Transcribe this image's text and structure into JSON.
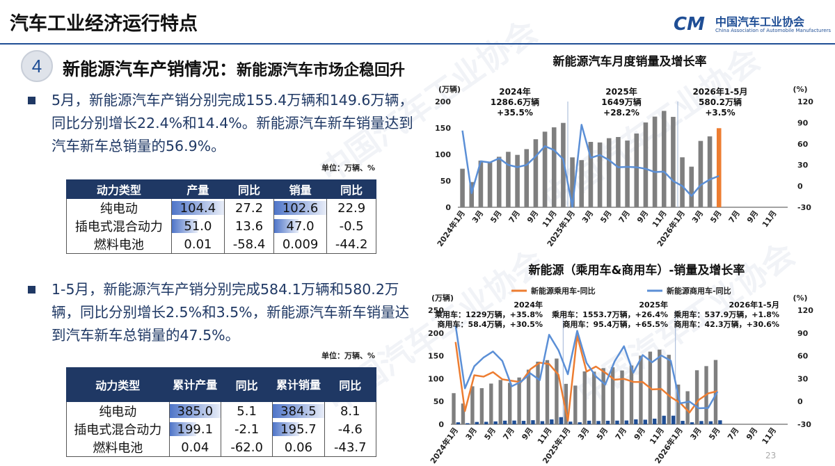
{
  "header": {
    "title": "汽车工业经济运行特点",
    "logo_mark": "CM",
    "logo_cn": "中国汽车工业协会",
    "logo_en": "China Association of Automobile Manufacturers"
  },
  "section": {
    "number": "4",
    "title": "新能源汽车产销情况：",
    "subtitle": "新能源汽车市场企稳回升"
  },
  "bullet1": "5月，新能源汽车产销分别完成155.4万辆和149.6万辆，同比分别增长22.4%和14.4%。新能源汽车新车销量达到汽车新车总销量的56.9%。",
  "bullet2": "1-5月，新能源汽车产销分别完成584.1万辆和580.2万辆，同比分别增长2.5%和3.5%，新能源汽车新车销量达到汽车新车总销量的47.5%。",
  "table1": {
    "unit": "单位：万辆、%",
    "headers": [
      "动力类型",
      "产量",
      "同比",
      "销量",
      "同比"
    ],
    "rows": [
      {
        "type": "纯电动",
        "prod": "104.4",
        "prod_yoy": "27.2",
        "sales": "102.6",
        "sales_yoy": "22.9",
        "prod_fill": 1.0,
        "sales_fill": 1.0
      },
      {
        "type": "插电式混合动力",
        "prod": "51.0",
        "prod_yoy": "13.6",
        "sales": "47.0",
        "sales_yoy": "-0.5",
        "prod_fill": 0.49,
        "sales_fill": 0.46
      },
      {
        "type": "燃料电池",
        "prod": "0.01",
        "prod_yoy": "-58.4",
        "sales": "0.009",
        "sales_yoy": "-44.2",
        "prod_fill": 0,
        "sales_fill": 0
      }
    ]
  },
  "table2": {
    "unit": "单位：万辆、%",
    "headers": [
      "动力类型",
      "累计产量",
      "同比",
      "累计销量",
      "同比"
    ],
    "rows": [
      {
        "type": "纯电动",
        "prod": "385.0",
        "prod_yoy": "5.1",
        "sales": "384.5",
        "sales_yoy": "8.1",
        "prod_fill": 1.0,
        "sales_fill": 1.0
      },
      {
        "type": "插电式混合动力",
        "prod": "199.1",
        "prod_yoy": "-2.1",
        "sales": "195.7",
        "sales_yoy": "-4.6",
        "prod_fill": 0.52,
        "sales_fill": 0.51
      },
      {
        "type": "燃料电池",
        "prod": "0.04",
        "prod_yoy": "-62.0",
        "sales": "0.06",
        "sales_yoy": "-43.7",
        "prod_fill": 0,
        "sales_fill": 0
      }
    ]
  },
  "page_number": "23",
  "colors": {
    "navy": "#1f3864",
    "bar_gray": "#7f7f7f",
    "line_blue": "#5b8fd6",
    "line_orange": "#ed7d31",
    "bar_orange": "#ed7d31",
    "bar_navy": "#1f4e95"
  },
  "chart_data": [
    {
      "type": "bar",
      "title": "新能源汽车月度销量及增长率",
      "ylabel": "(万辆)",
      "y2label": "(%)",
      "ylim": [
        0,
        200
      ],
      "y2lim": [
        -30,
        120
      ],
      "yticks": [
        "0",
        "50",
        "100",
        "150",
        "200"
      ],
      "y2ticks": [
        "-30",
        "0",
        "30",
        "60",
        "90",
        "120"
      ],
      "categories": [
        "2024年1月",
        "2月",
        "3月",
        "4月",
        "5月",
        "6月",
        "7月",
        "8月",
        "9月",
        "10月",
        "11月",
        "12月",
        "2025年1月",
        "2月",
        "3月",
        "4月",
        "5月",
        "6月",
        "7月",
        "8月",
        "9月",
        "10月",
        "11月",
        "12月",
        "2026年1月",
        "2月",
        "3月",
        "4月",
        "5月",
        "6月",
        "7月",
        "8月",
        "9月",
        "10月",
        "11月",
        "12月"
      ],
      "tick_labels": [
        "2024年1月",
        "",
        "3月",
        "",
        "5月",
        "",
        "7月",
        "",
        "9月",
        "",
        "11月",
        "",
        "2025年1月",
        "",
        "3月",
        "",
        "5月",
        "",
        "7月",
        "",
        "9月",
        "",
        "11月",
        "",
        "2026年1月",
        "",
        "3月",
        "",
        "5月",
        "",
        "7月",
        "",
        "9月",
        "",
        "11月",
        ""
      ],
      "series": [
        {
          "values": [
            72.9,
            47.7,
            88.3,
            85,
            95.5,
            104.9,
            99.1,
            110,
            128.7,
            143,
            151.2,
            159.6,
            94.4,
            89.2,
            123.7,
            122.6,
            130.7,
            132.9,
            126.2,
            139.5,
            160.4,
            171.5,
            182.3,
            171,
            94.5,
            76.8,
            125.5,
            134.1,
            149.6,
            null,
            null,
            null,
            null,
            null,
            null,
            null
          ],
          "highlight_index": 28
        },
        {
          "name": "同比",
          "axis": "right",
          "values": [
            78.8,
            -9.9,
            35.3,
            33.5,
            39.5,
            30.1,
            27,
            30,
            42.3,
            56.7,
            51.1,
            38.1,
            -29.4,
            87.1,
            40.1,
            44.2,
            36.9,
            26.7,
            27.4,
            26.8,
            24.6,
            19.9,
            20.6,
            7.2,
            0.1,
            -13.9,
            1.5,
            9.4,
            14.4,
            null,
            null,
            null,
            null,
            null,
            null,
            null
          ]
        }
      ],
      "annotations": [
        {
          "lines": [
            "2024年",
            "1286.6万辆",
            "+35.5%"
          ]
        },
        {
          "lines": [
            "2025年",
            "1649万辆",
            "+28.2%"
          ]
        },
        {
          "lines": [
            "2026年1-5月",
            "580.2万辆",
            "+3.5%"
          ]
        }
      ]
    },
    {
      "type": "bar",
      "title": "新能源（乘用车&商用车）-销量及增长率",
      "ylabel": "(万辆)",
      "y2label": "(%)",
      "ylim": [
        0,
        250
      ],
      "y2lim": [
        -30,
        120
      ],
      "yticks": [
        "0",
        "50",
        "100",
        "150",
        "200",
        "250"
      ],
      "y2ticks": [
        "-30",
        "0",
        "30",
        "60",
        "90",
        "120"
      ],
      "categories": [
        "2024年1月",
        "2月",
        "3月",
        "4月",
        "5月",
        "6月",
        "7月",
        "8月",
        "9月",
        "10月",
        "11月",
        "12月",
        "2025年1月",
        "2月",
        "3月",
        "4月",
        "5月",
        "6月",
        "7月",
        "8月",
        "9月",
        "10月",
        "11月",
        "12月",
        "2026年1月",
        "2月",
        "3月",
        "4月",
        "5月",
        "6月",
        "7月",
        "8月",
        "9月",
        "10月",
        "11月",
        "12月"
      ],
      "tick_labels": [
        "2024年1月",
        "",
        "3月",
        "",
        "5月",
        "",
        "7月",
        "",
        "9月",
        "",
        "11月",
        "",
        "2025年1月",
        "",
        "3月",
        "",
        "5月",
        "",
        "7月",
        "",
        "9月",
        "",
        "11月",
        "",
        "2026年1月",
        "",
        "3月",
        "",
        "5月",
        "",
        "7月",
        "",
        "9月",
        "",
        "11月",
        ""
      ],
      "legend": [
        "新能源乘用车-同比",
        "新能源商用车-同比"
      ],
      "series": [
        {
          "values": [
            68.2,
            45.5,
            83.2,
            79.1,
            89.2,
            97.1,
            90.9,
            102.5,
            119.7,
            137.2,
            140.6,
            144,
            88.6,
            84.8,
            115.9,
            115.4,
            123,
            124.9,
            117.9,
            128.8,
            150.4,
            159.2,
            163.6,
            152.2,
            87,
            72.4,
            118.4,
            127.5,
            140.9,
            null,
            null,
            null,
            null,
            null,
            null,
            null
          ]
        },
        {
          "values": [
            4.3,
            2.3,
            5.1,
            5.4,
            6.3,
            7.9,
            8.1,
            7.5,
            8.9,
            6.8,
            10.6,
            15.6,
            5.8,
            4.4,
            7.8,
            7.2,
            7.7,
            8,
            8.3,
            10.7,
            10,
            12.3,
            18.7,
            18.8,
            7.5,
            4.4,
            7.1,
            6.6,
            8.7,
            null,
            null,
            null,
            null,
            null,
            null,
            null
          ]
        },
        {
          "name": "新能源乘用车-同比",
          "axis": "right",
          "values": [
            78.2,
            -12.6,
            34.5,
            32.6,
            38.6,
            29.1,
            27.2,
            25.3,
            42.4,
            51,
            49.2,
            35.1,
            -25.4,
            86.5,
            39.3,
            45.9,
            37.8,
            28.6,
            29.7,
            25.7,
            25.6,
            15.8,
            16.4,
            5.7,
            -1.8,
            -14.6,
            2.1,
            10.6,
            13.6,
            null,
            null,
            null,
            null,
            null,
            null,
            null
          ]
        },
        {
          "name": "新能源商用车-同比",
          "axis": "right",
          "values": [
            100,
            17.2,
            46.3,
            57.9,
            65.7,
            53.2,
            19.9,
            26,
            36.9,
            28.1,
            87.7,
            67.3,
            35.8,
            92.9,
            50.8,
            32.8,
            22.2,
            52.8,
            72.6,
            37.8,
            61,
            51.5,
            60.4,
            53.6,
            -2.5,
            -0.2,
            -9,
            -8.5,
            13,
            null,
            null,
            null,
            null,
            null,
            null,
            null
          ]
        }
      ],
      "annotations": [
        {
          "lines": [
            "2024年",
            "乘用车：1229万辆，+35.8%",
            "商用车：58.4万辆，+30.5%"
          ]
        },
        {
          "lines": [
            "2025年",
            "乘用车：1553.7万辆，+26.4%",
            "商用车：95.4万辆，+65.5%"
          ]
        },
        {
          "lines": [
            "2026年1-5月",
            "乘用车：537.9万辆，+1.8%",
            "商用车：42.3万辆，+30.6%"
          ]
        }
      ]
    }
  ]
}
